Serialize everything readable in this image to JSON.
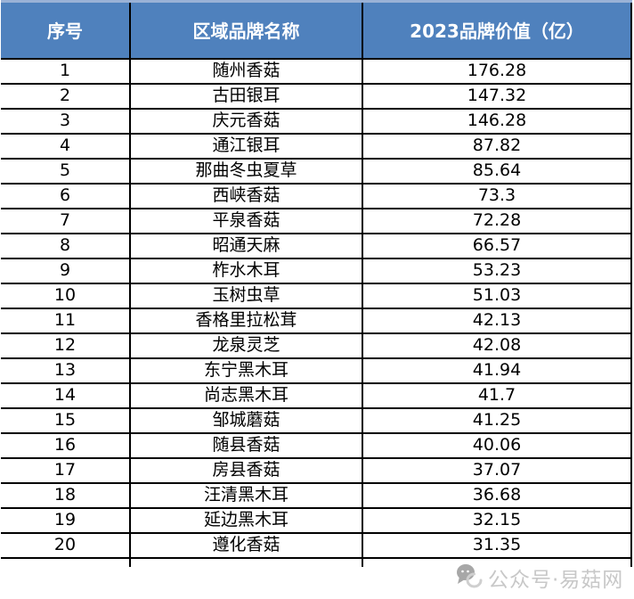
{
  "chart_data": {
    "type": "table",
    "columns": [
      "序号",
      "区域品牌名称",
      "2023品牌价值（亿）"
    ],
    "rows": [
      [
        "1",
        "随州香菇",
        "176.28"
      ],
      [
        "2",
        "古田银耳",
        "147.32"
      ],
      [
        "3",
        "庆元香菇",
        "146.28"
      ],
      [
        "4",
        "通江银耳",
        "87.82"
      ],
      [
        "5",
        "那曲冬虫夏草",
        "85.64"
      ],
      [
        "6",
        "西峡香菇",
        "73.3"
      ],
      [
        "7",
        "平泉香菇",
        "72.28"
      ],
      [
        "8",
        "昭通天麻",
        "66.57"
      ],
      [
        "9",
        "柞水木耳",
        "53.23"
      ],
      [
        "10",
        "玉树虫草",
        "51.03"
      ],
      [
        "11",
        "香格里拉松茸",
        "42.13"
      ],
      [
        "12",
        "龙泉灵芝",
        "42.08"
      ],
      [
        "13",
        "东宁黑木耳",
        "41.94"
      ],
      [
        "14",
        "尚志黑木耳",
        "41.7"
      ],
      [
        "15",
        "邹城蘑菇",
        "41.25"
      ],
      [
        "16",
        "随县香菇",
        "40.06"
      ],
      [
        "17",
        "房县香菇",
        "37.07"
      ],
      [
        "18",
        "汪清黑木耳",
        "36.68"
      ],
      [
        "19",
        "延边黑木耳",
        "32.15"
      ],
      [
        "20",
        "遵化香菇",
        "31.35"
      ]
    ]
  },
  "watermark": {
    "text": "公众号·易菇网",
    "icon": "wechat-chat-bubbles-icon"
  },
  "colors": {
    "header_bg": "#4F81BD",
    "header_text": "#FFFFFF",
    "row_bg": "#FFFFFF",
    "border": "#000000",
    "watermark_text": "#C8C8C8"
  }
}
